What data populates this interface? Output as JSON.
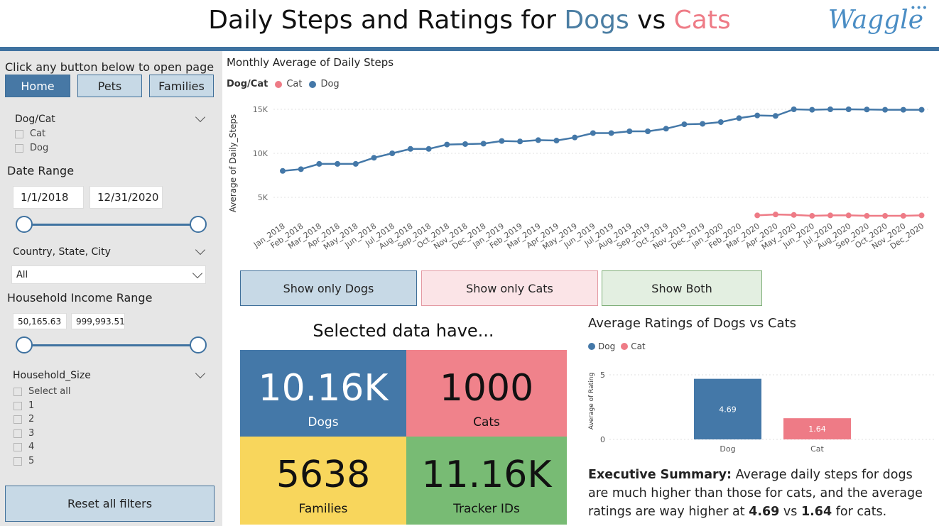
{
  "header": {
    "title_prefix": "Daily Steps and Ratings for ",
    "title_dogs": "Dogs",
    "title_vs": " vs ",
    "title_cats": "Cats",
    "logo_text": "Waggle"
  },
  "sidebar": {
    "instruction": "Click any button below to open page",
    "nav": [
      "Home",
      "Pets",
      "Families"
    ],
    "dogcat_filter": {
      "label": "Dog/Cat",
      "options": [
        "Cat",
        "Dog"
      ]
    },
    "date_range": {
      "label": "Date Range",
      "start": "1/1/2018",
      "end": "12/31/2020"
    },
    "location_filter": {
      "label": "Country, State, City",
      "value": "All"
    },
    "income_filter": {
      "label": "Household Income Range",
      "min": "50,165.63",
      "max": "999,993.51"
    },
    "household_size": {
      "label": "Household_Size",
      "options": [
        "Select all",
        "1",
        "2",
        "3",
        "4",
        "5"
      ]
    },
    "reset_label": "Reset all filters"
  },
  "line_chart": {
    "title": "Monthly Average of Daily Steps",
    "legend_title": "Dog/Cat",
    "legend": [
      {
        "name": "Cat",
        "color": "#ee7b86"
      },
      {
        "name": "Dog",
        "color": "#4478a8"
      }
    ]
  },
  "toggles": {
    "dogs": "Show only Dogs",
    "cats": "Show only Cats",
    "both": "Show Both"
  },
  "kpis": {
    "heading": "Selected data have...",
    "dogs": {
      "value": "10.16K",
      "label": "Dogs",
      "color": "#4478a8"
    },
    "cats": {
      "value": "1000",
      "label": "Cats",
      "color": "#f0828b"
    },
    "families": {
      "value": "5638",
      "label": "Families",
      "color": "#f8d65c"
    },
    "trackers": {
      "value": "11.16K",
      "label": "Tracker IDs",
      "color": "#78bb74"
    }
  },
  "bar_chart": {
    "title": "Average Ratings of Dogs vs Cats",
    "legend": [
      {
        "name": "Dog",
        "color": "#4478a8"
      },
      {
        "name": "Cat",
        "color": "#ee7b86"
      }
    ]
  },
  "summary": {
    "bold_lead": "Executive Summary:",
    "text1": " Average daily steps for dogs are much higher than those for cats, and the average ratings are way higher at ",
    "dog_rating": "4.69",
    "text2": " vs ",
    "cat_rating": "1.64",
    "text3": " for cats."
  },
  "chart_data": [
    {
      "type": "line",
      "title": "Monthly Average of Daily Steps",
      "xlabel": "",
      "ylabel": "Average of Daily_Steps",
      "yticks": [
        "5K",
        "10K",
        "15K"
      ],
      "ylim": [
        0,
        16000
      ],
      "grid": true,
      "legend_position": "top-left",
      "x": [
        "Jan_2018",
        "Feb_2018",
        "Mar_2018",
        "Apr_2018",
        "May_2018",
        "Jun_2018",
        "Jul_2018",
        "Aug_2018",
        "Sep_2018",
        "Oct_2018",
        "Nov_2018",
        "Dec_2018",
        "Jan_2019",
        "Feb_2019",
        "Mar_2019",
        "Apr_2019",
        "May_2019",
        "Jun_2019",
        "Jul_2019",
        "Aug_2019",
        "Sep_2019",
        "Oct_2019",
        "Nov_2019",
        "Dec_2019",
        "Jan_2020",
        "Feb_2020",
        "Mar_2020",
        "Apr_2020",
        "May_2020",
        "Jun_2020",
        "Jul_2020",
        "Aug_2020",
        "Sep_2020",
        "Oct_2020",
        "Nov_2020",
        "Dec_2020"
      ],
      "series": [
        {
          "name": "Dog",
          "color": "#4478a8",
          "values": [
            8000,
            8200,
            8800,
            8800,
            8800,
            9500,
            10000,
            10500,
            10500,
            11000,
            11050,
            11100,
            11400,
            11350,
            11500,
            11450,
            11800,
            12300,
            12300,
            12500,
            12500,
            12800,
            13300,
            13350,
            13550,
            14000,
            14300,
            14250,
            15000,
            14950,
            15000,
            15000,
            14980,
            14950,
            14950,
            14950
          ]
        },
        {
          "name": "Cat",
          "color": "#ee7b86",
          "values": [
            null,
            null,
            null,
            null,
            null,
            null,
            null,
            null,
            null,
            null,
            null,
            null,
            null,
            null,
            null,
            null,
            null,
            null,
            null,
            null,
            null,
            null,
            null,
            null,
            null,
            null,
            2950,
            3050,
            3000,
            2900,
            2950,
            2950,
            2900,
            2900,
            2900,
            2950
          ]
        }
      ]
    },
    {
      "type": "bar",
      "title": "Average Ratings of Dogs vs Cats",
      "ylabel": "Average of Rating",
      "categories": [
        "Dog",
        "Cat"
      ],
      "values": [
        4.69,
        1.64
      ],
      "colors": [
        "#4478a8",
        "#ee7b86"
      ],
      "ylim": [
        0,
        5
      ],
      "yticks": [
        "0",
        "5"
      ]
    }
  ]
}
